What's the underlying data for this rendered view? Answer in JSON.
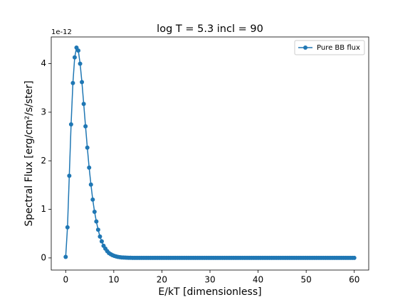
{
  "chart_data": {
    "type": "line",
    "title": "log T = 5.3 incl = 90",
    "xlabel": "E/kT [dimensionless]",
    "ylabel": "Spectral Flux [erg/cm²/s/ster]",
    "y_offset_label": "1e-12",
    "xlim": [
      -3,
      63
    ],
    "ylim": [
      -0.25,
      4.55
    ],
    "xticks": [
      0,
      10,
      20,
      30,
      40,
      50,
      60
    ],
    "yticks": [
      0,
      1,
      2,
      3,
      4
    ],
    "legend": "upper right",
    "x": [
      0,
      0.375,
      0.75,
      1.125,
      1.5,
      1.875,
      2.25,
      2.625,
      3,
      3.375,
      3.75,
      4.125,
      4.5,
      4.875,
      5.25,
      5.625,
      6,
      6.375,
      6.75,
      7.125,
      7.5,
      7.875,
      8.25,
      8.625,
      9,
      9.375,
      9.75,
      10.125,
      10.5,
      10.875,
      11.25,
      11.625,
      12,
      12.375,
      12.75,
      13.125,
      13.5,
      13.875,
      14.25,
      14.625,
      15,
      15.375,
      15.75,
      16.125,
      16.5,
      16.875,
      17.25,
      17.625,
      18,
      18.375,
      18.75,
      19.125,
      19.5,
      19.875,
      20.25,
      20.625,
      21,
      21.375,
      21.75,
      22.125,
      22.5,
      22.875,
      23.25,
      23.625,
      24,
      24.375,
      24.75,
      25.125,
      25.5,
      25.875,
      26.25,
      26.625,
      27,
      27.375,
      27.75,
      28.125,
      28.5,
      28.875,
      29.25,
      29.625,
      30,
      30.375,
      30.75,
      31.125,
      31.5,
      31.875,
      32.25,
      32.625,
      33,
      33.375,
      33.75,
      34.125,
      34.5,
      34.875,
      35.25,
      35.625,
      36,
      36.375,
      36.75,
      37.125,
      37.5,
      37.875,
      38.25,
      38.625,
      39,
      39.375,
      39.75,
      40.125,
      40.5,
      40.875,
      41.25,
      41.625,
      42,
      42.375,
      42.75,
      43.125,
      43.5,
      43.875,
      44.25,
      44.625,
      45,
      45.375,
      45.75,
      46.125,
      46.5,
      46.875,
      47.25,
      47.625,
      48,
      48.375,
      48.75,
      49.125,
      49.5,
      49.875,
      50.25,
      50.625,
      51,
      51.375,
      51.75,
      52.125,
      52.5,
      52.875,
      53.25,
      53.625,
      54,
      54.375,
      54.75,
      55.125,
      55.5,
      55.875,
      56.25,
      56.625,
      57,
      57.375,
      57.75,
      58.125,
      58.5,
      58.875,
      59.25,
      59.625,
      60
    ],
    "series": [
      {
        "name": "Pure BB flux",
        "color": "#1f77b4",
        "values": [
          0.02,
          0.63,
          1.69,
          2.75,
          3.6,
          4.13,
          4.33,
          4.27,
          4.0,
          3.62,
          3.17,
          2.71,
          2.27,
          1.86,
          1.51,
          1.2,
          0.95,
          0.75,
          0.58,
          0.44,
          0.34,
          0.25,
          0.19,
          0.14,
          0.1,
          0.075,
          0.055,
          0.04,
          0.03,
          0.02,
          0.015,
          0.01,
          0.008,
          0.006,
          0.004,
          0.003,
          0.002,
          0.001,
          0.001,
          0.001,
          0,
          0,
          0,
          0,
          0,
          0,
          0,
          0,
          0,
          0,
          0,
          0,
          0,
          0,
          0,
          0,
          0,
          0,
          0,
          0,
          0,
          0,
          0,
          0,
          0,
          0,
          0,
          0,
          0,
          0,
          0,
          0,
          0,
          0,
          0,
          0,
          0,
          0,
          0,
          0,
          0,
          0,
          0,
          0,
          0,
          0,
          0,
          0,
          0,
          0,
          0,
          0,
          0,
          0,
          0,
          0,
          0,
          0,
          0,
          0,
          0,
          0,
          0,
          0,
          0,
          0,
          0,
          0,
          0,
          0,
          0,
          0,
          0,
          0,
          0,
          0,
          0,
          0,
          0,
          0,
          0,
          0,
          0,
          0,
          0,
          0,
          0,
          0,
          0,
          0,
          0,
          0,
          0,
          0,
          0,
          0,
          0,
          0,
          0,
          0,
          0,
          0,
          0,
          0,
          0,
          0,
          0,
          0,
          0,
          0,
          0,
          0,
          0,
          0,
          0,
          0,
          0,
          0,
          0,
          0,
          0
        ]
      }
    ]
  }
}
